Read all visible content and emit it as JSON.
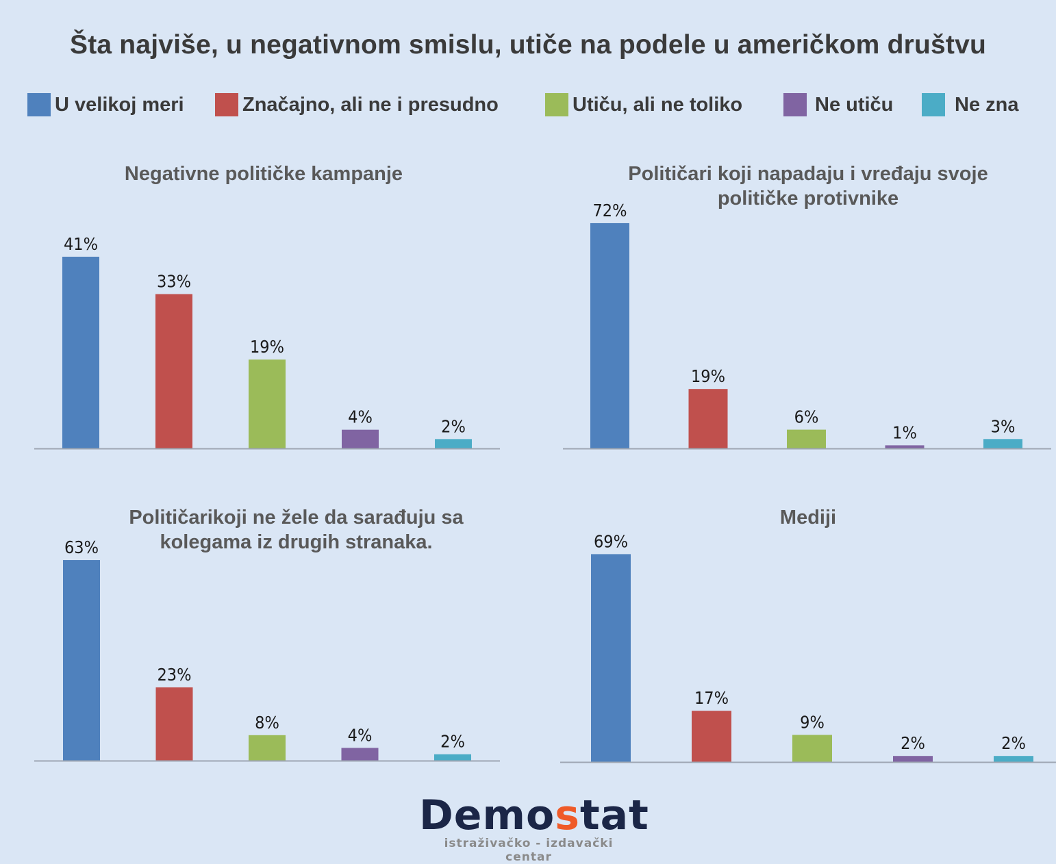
{
  "title": "Šta najviše, u negativnom smislu, utiče na podele u američkom društvu",
  "legend": [
    {
      "label": "U velikoj meri",
      "color": "#4f81bd"
    },
    {
      "label": "Značajno, ali ne i presudno",
      "color": "#c0504d"
    },
    {
      "label": "Utiču, ali ne toliko",
      "color": "#9bbb59"
    },
    {
      "label": "Ne utiču",
      "color": "#8064a2"
    },
    {
      "label": "Ne zna",
      "color": "#4bacc6"
    }
  ],
  "logo": {
    "brand_prefix": "Demo",
    "brand_accent": "s",
    "brand_suffix": "tat",
    "tagline": "istraživačko - izdavački  centar"
  },
  "chart_data": [
    {
      "type": "bar",
      "title": "Negativne političke kampanje",
      "categories": [
        "U velikoj meri",
        "Značajno, ali ne i presudno",
        "Utiču, ali ne toliko",
        "Ne utiču",
        "Ne zna"
      ],
      "values": [
        41,
        33,
        19,
        4,
        2
      ],
      "labels": [
        "41%",
        "33%",
        "19%",
        "4%",
        "2%"
      ],
      "unit": "%",
      "xlabel": "",
      "ylabel": "",
      "ylim": [
        0,
        45
      ],
      "grid": false,
      "legend": "top"
    },
    {
      "type": "bar",
      "title": "Političari koji napadaju i vređaju svoje političke protivnike",
      "categories": [
        "U velikoj meri",
        "Značajno, ali ne i presudno",
        "Utiču, ali ne toliko",
        "Ne utiču",
        "Ne zna"
      ],
      "values": [
        72,
        19,
        6,
        1,
        3
      ],
      "labels": [
        "72%",
        "19%",
        "6%",
        "1%",
        "3%"
      ],
      "unit": "%",
      "xlabel": "",
      "ylabel": "",
      "ylim": [
        0,
        75
      ],
      "grid": false,
      "legend": "top"
    },
    {
      "type": "bar",
      "title": "Političarikoji ne žele da sarađuju sa kolegama iz drugih stranaka.",
      "categories": [
        "U velikoj meri",
        "Značajno, ali ne i presudno",
        "Utiču, ali ne toliko",
        "Ne utiču",
        "Ne zna"
      ],
      "values": [
        63,
        23,
        8,
        4,
        2
      ],
      "labels": [
        "63%",
        "23%",
        "8%",
        "4%",
        "2%"
      ],
      "unit": "%",
      "xlabel": "",
      "ylabel": "",
      "ylim": [
        0,
        70
      ],
      "grid": false,
      "legend": "top"
    },
    {
      "type": "bar",
      "title": "Mediji",
      "categories": [
        "U velikoj meri",
        "Značajno, ali ne i presudno",
        "Utiču, ali ne toliko",
        "Ne utiču",
        "Ne zna"
      ],
      "values": [
        69,
        17,
        9,
        2,
        2
      ],
      "labels": [
        "69%",
        "17%",
        "9%",
        "2%",
        "2%"
      ],
      "unit": "%",
      "xlabel": "",
      "ylabel": "",
      "ylim": [
        0,
        75
      ],
      "grid": false,
      "legend": "top"
    }
  ]
}
